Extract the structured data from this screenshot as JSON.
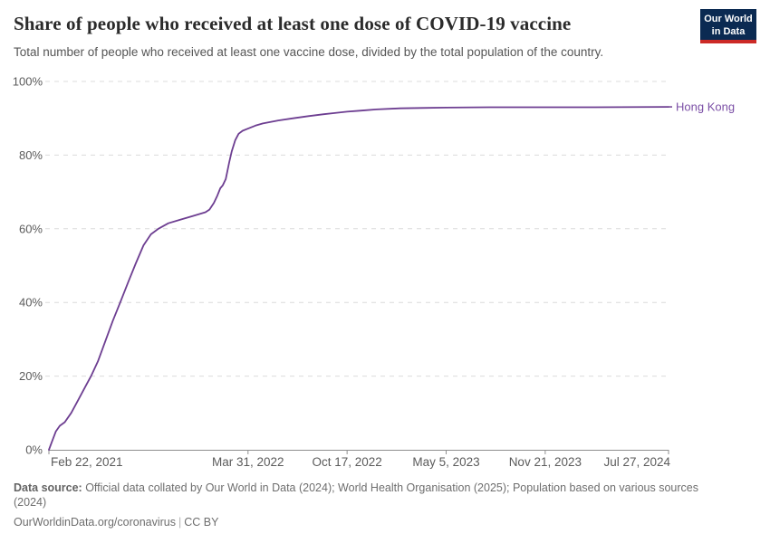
{
  "header": {
    "title": "Share of people who received at least one dose of COVID-19 vaccine",
    "subtitle": "Total number of people who received at least one vaccine dose, divided by the total population of the country.",
    "logo": {
      "line1": "Our World",
      "line2": "in Data"
    }
  },
  "colors": {
    "series_line": "#6D3E91",
    "series_label": "#7B4FA6",
    "gridline": "#dcdcdc",
    "axis_line": "#8f8f8f",
    "axis_text": "#5b5b5b",
    "logo_bg": "#0b2a52",
    "logo_stripe": "#cc2a26"
  },
  "chart_data": {
    "type": "line",
    "title": "Share of people who received at least one dose of COVID-19 vaccine",
    "subtitle": "Total number of people who received at least one vaccine dose, divided by the total population of the country.",
    "xlabel": "",
    "ylabel": "",
    "ylim": [
      0,
      100
    ],
    "grid": "horizontal-dashed",
    "legend_position": "right-end-of-line",
    "x_range": [
      "2021-02-22",
      "2024-07-27"
    ],
    "x_ticks": [
      {
        "label": "Feb 22, 2021",
        "date": "2021-02-22"
      },
      {
        "label": "Mar 31, 2022",
        "date": "2022-03-31"
      },
      {
        "label": "Oct 17, 2022",
        "date": "2022-10-17"
      },
      {
        "label": "May 5, 2023",
        "date": "2023-05-05"
      },
      {
        "label": "Nov 21, 2023",
        "date": "2023-11-21"
      },
      {
        "label": "Jul 27, 2024",
        "date": "2024-07-27"
      }
    ],
    "y_ticks": [
      {
        "value": 0,
        "label": "0%"
      },
      {
        "value": 20,
        "label": "20%"
      },
      {
        "value": 40,
        "label": "40%"
      },
      {
        "value": 60,
        "label": "60%"
      },
      {
        "value": 80,
        "label": "80%"
      },
      {
        "value": 100,
        "label": "100%"
      }
    ],
    "series": [
      {
        "name": "Hong Kong",
        "points": [
          {
            "date": "2021-02-22",
            "value": 0
          },
          {
            "date": "2021-03-01",
            "value": 2.5
          },
          {
            "date": "2021-03-08",
            "value": 5
          },
          {
            "date": "2021-03-16",
            "value": 6.5
          },
          {
            "date": "2021-03-26",
            "value": 7.5
          },
          {
            "date": "2021-04-08",
            "value": 10
          },
          {
            "date": "2021-04-22",
            "value": 13.5
          },
          {
            "date": "2021-05-06",
            "value": 17
          },
          {
            "date": "2021-05-18",
            "value": 20
          },
          {
            "date": "2021-06-01",
            "value": 24
          },
          {
            "date": "2021-06-16",
            "value": 29.5
          },
          {
            "date": "2021-07-01",
            "value": 35
          },
          {
            "date": "2021-07-16",
            "value": 40
          },
          {
            "date": "2021-08-01",
            "value": 45.5
          },
          {
            "date": "2021-08-16",
            "value": 50.5
          },
          {
            "date": "2021-09-01",
            "value": 55.5
          },
          {
            "date": "2021-09-16",
            "value": 58.5
          },
          {
            "date": "2021-10-01",
            "value": 60
          },
          {
            "date": "2021-10-21",
            "value": 61.5
          },
          {
            "date": "2021-11-15",
            "value": 62.5
          },
          {
            "date": "2021-12-10",
            "value": 63.5
          },
          {
            "date": "2022-01-04",
            "value": 64.5
          },
          {
            "date": "2022-01-12",
            "value": 65.2
          },
          {
            "date": "2022-01-21",
            "value": 67
          },
          {
            "date": "2022-01-28",
            "value": 69
          },
          {
            "date": "2022-02-03",
            "value": 71
          },
          {
            "date": "2022-02-08",
            "value": 71.8
          },
          {
            "date": "2022-02-14",
            "value": 73.5
          },
          {
            "date": "2022-02-21",
            "value": 78
          },
          {
            "date": "2022-02-26",
            "value": 81
          },
          {
            "date": "2022-03-05",
            "value": 84
          },
          {
            "date": "2022-03-12",
            "value": 85.8
          },
          {
            "date": "2022-03-20",
            "value": 86.6
          },
          {
            "date": "2022-03-31",
            "value": 87.2
          },
          {
            "date": "2022-04-15",
            "value": 88
          },
          {
            "date": "2022-04-30",
            "value": 88.6
          },
          {
            "date": "2022-05-31",
            "value": 89.4
          },
          {
            "date": "2022-06-30",
            "value": 90
          },
          {
            "date": "2022-07-31",
            "value": 90.6
          },
          {
            "date": "2022-08-31",
            "value": 91.1
          },
          {
            "date": "2022-09-20",
            "value": 91.4
          },
          {
            "date": "2022-10-17",
            "value": 91.8
          },
          {
            "date": "2022-11-15",
            "value": 92.1
          },
          {
            "date": "2022-12-15",
            "value": 92.4
          },
          {
            "date": "2023-02-01",
            "value": 92.7
          },
          {
            "date": "2023-03-15",
            "value": 92.8
          },
          {
            "date": "2023-05-05",
            "value": 92.9
          },
          {
            "date": "2023-08-01",
            "value": 93
          },
          {
            "date": "2023-11-21",
            "value": 93
          },
          {
            "date": "2024-03-01",
            "value": 93
          },
          {
            "date": "2024-07-27",
            "value": 93.1
          }
        ]
      }
    ]
  },
  "footer": {
    "source_label": "Data source:",
    "source_text": " Official data collated by Our World in Data (2024); World Health Organisation (2025); Population based on various sources (2024)",
    "link": "OurWorldinData.org/coronavirus",
    "separator": "|",
    "license": "CC BY"
  }
}
